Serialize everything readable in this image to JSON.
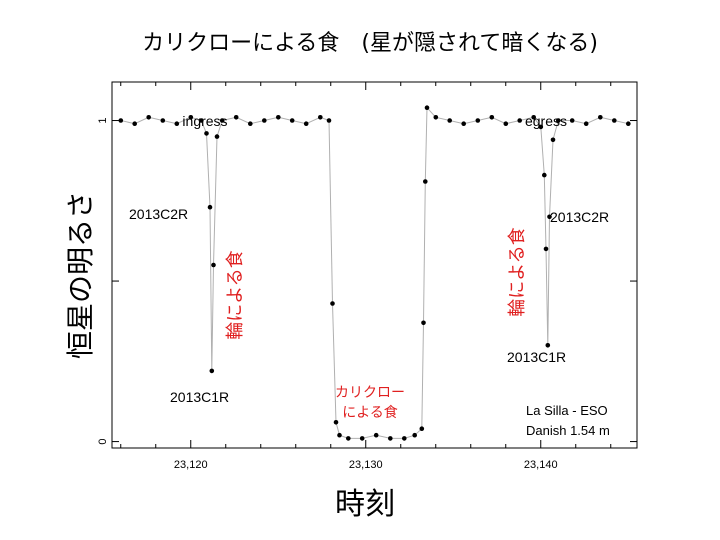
{
  "title": "カリクローによる食　(星が隠されて暗くなる)",
  "ylabel": "恒星の明るさ",
  "xlabel": "時刻",
  "annotations": {
    "ingress": "ingress",
    "egress": "egress",
    "ring_c2r_left": "2013C2R",
    "ring_c1r_left": "2013C1R",
    "ring_c2r_right": "2013C2R",
    "ring_c1r_right": "2013C1R",
    "ring_occ_left": "輪による食",
    "ring_occ_right": "輪による食",
    "body_occ_line1": "カリクロー",
    "body_occ_line2": "による食",
    "credit_line1": "La Silla - ESO",
    "credit_line2": "Danish 1.54 m"
  },
  "chart_data": {
    "type": "scatter",
    "title": "カリクローによる食　(星が隠されて暗くなる)",
    "xlabel": "時刻",
    "ylabel": "恒星の明るさ",
    "xlim": [
      23115.5,
      23145.5
    ],
    "ylim": [
      -0.02,
      1.12
    ],
    "xticks": [
      23120,
      23130,
      23140
    ],
    "xtick_labels": [
      "23,120",
      "23,130",
      "23,140"
    ],
    "yticks": [
      0,
      1
    ],
    "ytick_labels": [
      "0",
      "1"
    ],
    "grid": false,
    "series": [
      {
        "style": "points-with-line",
        "points": [
          [
            23116.0,
            1.0
          ],
          [
            23116.8,
            0.99
          ],
          [
            23117.6,
            1.01
          ],
          [
            23118.4,
            1.0
          ],
          [
            23119.2,
            0.99
          ],
          [
            23120.0,
            1.01
          ],
          [
            23120.6,
            1.0
          ],
          [
            23120.9,
            0.96
          ],
          [
            23121.1,
            0.73
          ],
          [
            23121.2,
            0.22
          ],
          [
            23121.3,
            0.55
          ],
          [
            23121.5,
            0.95
          ],
          [
            23121.8,
            1.0
          ],
          [
            23122.6,
            1.01
          ],
          [
            23123.4,
            0.99
          ],
          [
            23124.2,
            1.0
          ],
          [
            23125.0,
            1.01
          ],
          [
            23125.8,
            1.0
          ],
          [
            23126.6,
            0.99
          ],
          [
            23127.4,
            1.01
          ],
          [
            23127.9,
            1.0
          ],
          [
            23128.1,
            0.43
          ],
          [
            23128.3,
            0.06
          ],
          [
            23128.5,
            0.02
          ],
          [
            23129.0,
            0.01
          ],
          [
            23129.8,
            0.01
          ],
          [
            23130.6,
            0.02
          ],
          [
            23131.4,
            0.01
          ],
          [
            23132.2,
            0.01
          ],
          [
            23132.8,
            0.02
          ],
          [
            23133.2,
            0.04
          ],
          [
            23133.3,
            0.37
          ],
          [
            23133.4,
            0.81
          ],
          [
            23133.5,
            1.04
          ],
          [
            23134.0,
            1.01
          ],
          [
            23134.8,
            1.0
          ],
          [
            23135.6,
            0.99
          ],
          [
            23136.4,
            1.0
          ],
          [
            23137.2,
            1.01
          ],
          [
            23138.0,
            0.99
          ],
          [
            23138.8,
            1.0
          ],
          [
            23139.6,
            1.01
          ],
          [
            23140.0,
            0.98
          ],
          [
            23140.2,
            0.83
          ],
          [
            23140.3,
            0.6
          ],
          [
            23140.4,
            0.3
          ],
          [
            23140.5,
            0.7
          ],
          [
            23140.7,
            0.94
          ],
          [
            23141.0,
            1.0
          ],
          [
            23141.8,
            1.0
          ],
          [
            23142.6,
            0.99
          ],
          [
            23143.4,
            1.01
          ],
          [
            23144.2,
            1.0
          ],
          [
            23145.0,
            0.99
          ]
        ]
      }
    ]
  }
}
